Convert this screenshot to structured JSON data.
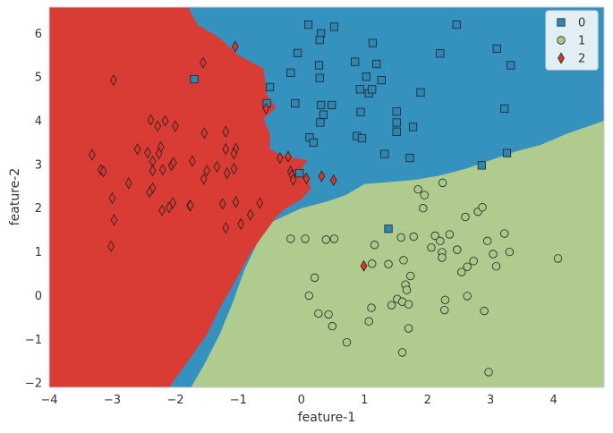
{
  "chart_data": {
    "type": "scatter",
    "title": "",
    "xlabel": "feature-1",
    "ylabel": "feature-2",
    "xlim": [
      -4.0,
      4.8
    ],
    "ylim": [
      -2.1,
      6.6
    ],
    "xticks": [
      -4,
      -3,
      -2,
      -1,
      0,
      1,
      2,
      3,
      4
    ],
    "yticks": [
      -2,
      -1,
      0,
      1,
      2,
      3,
      4,
      5,
      6
    ],
    "grid": false,
    "legend_position": "top-right",
    "colors": {
      "class0": "#2e86b5",
      "class1": "#a9c98a",
      "class2": "#d7372f",
      "region0": "#3591bd",
      "region1": "#afcc8e",
      "region2": "#d93c34",
      "marker_edge": "#222222",
      "spine": "#c8c8c8"
    },
    "decision_regions": {
      "boundary_red": [
        [
          -1.8,
          6.6
        ],
        [
          -1.65,
          6.2
        ],
        [
          -1.3,
          5.9
        ],
        [
          -1.0,
          5.5
        ],
        [
          -0.6,
          5.2
        ],
        [
          -0.55,
          4.6
        ],
        [
          -0.4,
          4.3
        ],
        [
          -0.6,
          4.05
        ],
        [
          -0.5,
          3.7
        ],
        [
          -0.5,
          3.35
        ],
        [
          -0.3,
          3.2
        ],
        [
          0.1,
          3.1
        ],
        [
          0.0,
          2.9
        ],
        [
          0.1,
          2.7
        ],
        [
          0.15,
          2.45
        ],
        [
          0.0,
          2.2
        ],
        [
          -0.25,
          2.0
        ],
        [
          -0.4,
          1.8
        ],
        [
          -0.6,
          1.4
        ],
        [
          -0.8,
          1.0
        ],
        [
          -1.1,
          0.2
        ],
        [
          -1.3,
          -0.3
        ],
        [
          -1.5,
          -0.9
        ],
        [
          -1.8,
          -1.5
        ],
        [
          -2.1,
          -2.1
        ]
      ],
      "boundary_green": [
        [
          -1.75,
          -2.1
        ],
        [
          -1.55,
          -1.6
        ],
        [
          -1.3,
          -0.9
        ],
        [
          -1.1,
          -0.2
        ],
        [
          -0.9,
          0.6
        ],
        [
          -0.7,
          1.2
        ],
        [
          -0.45,
          1.7
        ],
        [
          0.0,
          2.0
        ],
        [
          0.4,
          2.15
        ],
        [
          0.7,
          2.3
        ],
        [
          1.0,
          2.55
        ],
        [
          1.4,
          2.6
        ],
        [
          1.8,
          2.65
        ],
        [
          2.2,
          2.75
        ],
        [
          2.6,
          2.9
        ],
        [
          3.0,
          3.1
        ],
        [
          3.4,
          3.3
        ],
        [
          3.8,
          3.45
        ],
        [
          4.2,
          3.7
        ],
        [
          4.8,
          4.0
        ]
      ]
    },
    "series": [
      {
        "name": "0",
        "marker": "square",
        "points": [
          [
            0.11,
            6.2
          ],
          [
            0.31,
            6.0
          ],
          [
            0.52,
            6.15
          ],
          [
            0.29,
            5.85
          ],
          [
            -0.06,
            5.55
          ],
          [
            0.28,
            5.27
          ],
          [
            -0.17,
            5.1
          ],
          [
            0.29,
            4.98
          ],
          [
            -0.5,
            4.77
          ],
          [
            0.85,
            5.35
          ],
          [
            1.13,
            5.78
          ],
          [
            1.19,
            5.3
          ],
          [
            1.03,
            5.01
          ],
          [
            1.27,
            4.93
          ],
          [
            0.93,
            4.72
          ],
          [
            1.07,
            4.63
          ],
          [
            1.12,
            4.72
          ],
          [
            1.89,
            4.65
          ],
          [
            2.2,
            5.54
          ],
          [
            2.46,
            6.2
          ],
          [
            3.1,
            5.65
          ],
          [
            3.32,
            5.27
          ],
          [
            3.22,
            4.28
          ],
          [
            1.51,
            4.21
          ],
          [
            1.51,
            3.96
          ],
          [
            1.51,
            3.75
          ],
          [
            1.77,
            3.86
          ],
          [
            0.35,
            4.14
          ],
          [
            0.48,
            4.36
          ],
          [
            0.31,
            4.36
          ],
          [
            0.3,
            3.96
          ],
          [
            0.13,
            3.62
          ],
          [
            0.19,
            3.5
          ],
          [
            0.88,
            3.65
          ],
          [
            0.96,
            3.6
          ],
          [
            0.94,
            4.2
          ],
          [
            -0.1,
            4.4
          ],
          [
            -0.55,
            4.4
          ],
          [
            -1.7,
            4.95
          ],
          [
            1.32,
            3.24
          ],
          [
            1.72,
            3.15
          ],
          [
            2.86,
            2.98
          ],
          [
            3.26,
            3.26
          ],
          [
            -0.03,
            2.8
          ],
          [
            1.38,
            1.53
          ]
        ]
      },
      {
        "name": "1",
        "marker": "circle",
        "points": [
          [
            1.85,
            2.43
          ],
          [
            1.95,
            2.3
          ],
          [
            2.24,
            2.58
          ],
          [
            1.93,
            2.0
          ],
          [
            2.6,
            1.8
          ],
          [
            2.8,
            1.92
          ],
          [
            2.87,
            2.02
          ],
          [
            1.58,
            1.33
          ],
          [
            1.78,
            1.35
          ],
          [
            2.06,
            1.1
          ],
          [
            2.12,
            1.37
          ],
          [
            2.2,
            1.25
          ],
          [
            2.35,
            1.4
          ],
          [
            2.47,
            1.05
          ],
          [
            2.23,
            0.99
          ],
          [
            2.23,
            0.87
          ],
          [
            2.54,
            0.54
          ],
          [
            2.63,
            0.66
          ],
          [
            2.73,
            0.79
          ],
          [
            2.95,
            1.25
          ],
          [
            3.04,
            0.95
          ],
          [
            3.22,
            1.42
          ],
          [
            3.3,
            1.0
          ],
          [
            3.09,
            0.67
          ],
          [
            4.07,
            0.85
          ],
          [
            1.16,
            1.16
          ],
          [
            1.12,
            0.73
          ],
          [
            1.38,
            0.72
          ],
          [
            1.62,
            0.81
          ],
          [
            1.73,
            0.45
          ],
          [
            1.65,
            0.25
          ],
          [
            1.67,
            0.13
          ],
          [
            1.52,
            -0.08
          ],
          [
            1.43,
            -0.22
          ],
          [
            1.6,
            -0.14
          ],
          [
            1.7,
            -0.2
          ],
          [
            2.28,
            -0.1
          ],
          [
            2.27,
            -0.33
          ],
          [
            2.63,
            -0.01
          ],
          [
            2.9,
            -0.35
          ],
          [
            2.97,
            -1.75
          ],
          [
            1.11,
            -0.28
          ],
          [
            1.07,
            -0.59
          ],
          [
            1.7,
            -0.75
          ],
          [
            1.6,
            -1.3
          ],
          [
            0.72,
            -1.07
          ],
          [
            0.43,
            -0.43
          ],
          [
            0.49,
            -0.7
          ],
          [
            0.27,
            -0.41
          ],
          [
            0.12,
            0.0
          ],
          [
            0.21,
            0.41
          ],
          [
            0.06,
            1.3
          ],
          [
            -0.17,
            1.3
          ],
          [
            0.39,
            1.28
          ],
          [
            0.52,
            1.3
          ]
        ]
      },
      {
        "name": "2",
        "marker": "diamond",
        "points": [
          [
            -2.98,
            4.93
          ],
          [
            -1.56,
            5.33
          ],
          [
            -1.05,
            5.7
          ],
          [
            -0.56,
            4.28
          ],
          [
            -2.39,
            4.02
          ],
          [
            -2.16,
            4.0
          ],
          [
            -2.28,
            3.88
          ],
          [
            -2.0,
            3.88
          ],
          [
            -1.54,
            3.72
          ],
          [
            -1.2,
            3.75
          ],
          [
            -2.23,
            3.4
          ],
          [
            -2.26,
            3.25
          ],
          [
            -2.44,
            3.27
          ],
          [
            -2.6,
            3.35
          ],
          [
            -2.36,
            3.07
          ],
          [
            -2.2,
            2.88
          ],
          [
            -2.06,
            2.98
          ],
          [
            -2.03,
            3.04
          ],
          [
            -2.36,
            2.86
          ],
          [
            -1.73,
            3.08
          ],
          [
            -1.5,
            2.86
          ],
          [
            -1.34,
            2.95
          ],
          [
            -1.2,
            3.35
          ],
          [
            -1.04,
            3.36
          ],
          [
            -1.07,
            3.25
          ],
          [
            -1.07,
            2.9
          ],
          [
            -1.55,
            2.67
          ],
          [
            -1.18,
            2.8
          ],
          [
            -3.32,
            3.22
          ],
          [
            -3.18,
            2.88
          ],
          [
            -3.14,
            2.84
          ],
          [
            -2.74,
            2.57
          ],
          [
            -3.0,
            2.23
          ],
          [
            -2.36,
            2.46
          ],
          [
            -2.41,
            2.37
          ],
          [
            -2.04,
            2.12
          ],
          [
            -2.1,
            2.02
          ],
          [
            -1.77,
            2.06
          ],
          [
            -1.76,
            2.06
          ],
          [
            -2.21,
            1.95
          ],
          [
            -1.25,
            2.1
          ],
          [
            -1.04,
            2.14
          ],
          [
            -0.81,
            1.85
          ],
          [
            -0.66,
            2.12
          ],
          [
            -2.97,
            1.73
          ],
          [
            -3.02,
            1.13
          ],
          [
            -1.2,
            1.55
          ],
          [
            -0.96,
            1.64
          ],
          [
            -0.34,
            3.15
          ],
          [
            -0.21,
            3.18
          ],
          [
            -0.17,
            2.84
          ],
          [
            -0.15,
            2.76
          ],
          [
            -0.13,
            2.65
          ],
          [
            0.08,
            2.68
          ],
          [
            0.32,
            2.73
          ],
          [
            0.51,
            2.64
          ],
          [
            0.99,
            0.68
          ]
        ]
      }
    ]
  }
}
